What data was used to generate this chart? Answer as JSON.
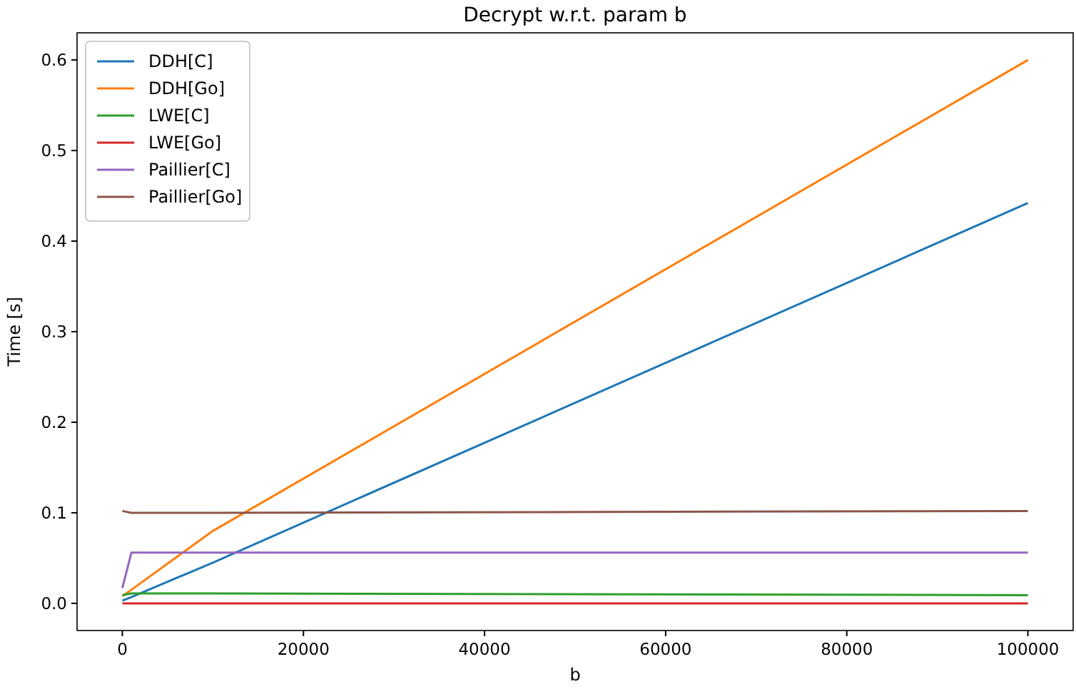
{
  "chart_data": {
    "type": "line",
    "title": "Decrypt w.r.t. param b",
    "xlabel": "b",
    "ylabel": "Time [s]",
    "x": [
      0,
      1000,
      10000,
      100000
    ],
    "series": [
      {
        "name": "DDH[C]",
        "color": "#1f77b4",
        "values": [
          0.003,
          0.007,
          0.045,
          0.442
        ]
      },
      {
        "name": "DDH[Go]",
        "color": "#ff7f0e",
        "values": [
          0.008,
          0.015,
          0.08,
          0.6
        ]
      },
      {
        "name": "LWE[C]",
        "color": "#2ca02c",
        "values": [
          0.009,
          0.011,
          0.011,
          0.009
        ]
      },
      {
        "name": "LWE[Go]",
        "color": "#d62728",
        "values": [
          0,
          0,
          0,
          0
        ]
      },
      {
        "name": "Paillier[C]",
        "color": "#9467bd",
        "values": [
          0.017,
          0.056,
          0.056,
          0.056
        ]
      },
      {
        "name": "Paillier[Go]",
        "color": "#8c564b",
        "values": [
          0.102,
          0.1,
          0.1,
          0.102
        ]
      }
    ],
    "xlim": [
      -5000,
      105000
    ],
    "xticks": [
      0,
      20000,
      40000,
      60000,
      80000,
      100000
    ],
    "ylim": [
      -0.03,
      0.63
    ],
    "yticks": [
      {
        "value": 0,
        "label": "0.0"
      },
      0.1,
      0.2,
      0.3,
      0.4,
      0.5,
      0.6
    ],
    "legend": "top left",
    "grid": false,
    "marker": "none",
    "line_style": "solid"
  }
}
